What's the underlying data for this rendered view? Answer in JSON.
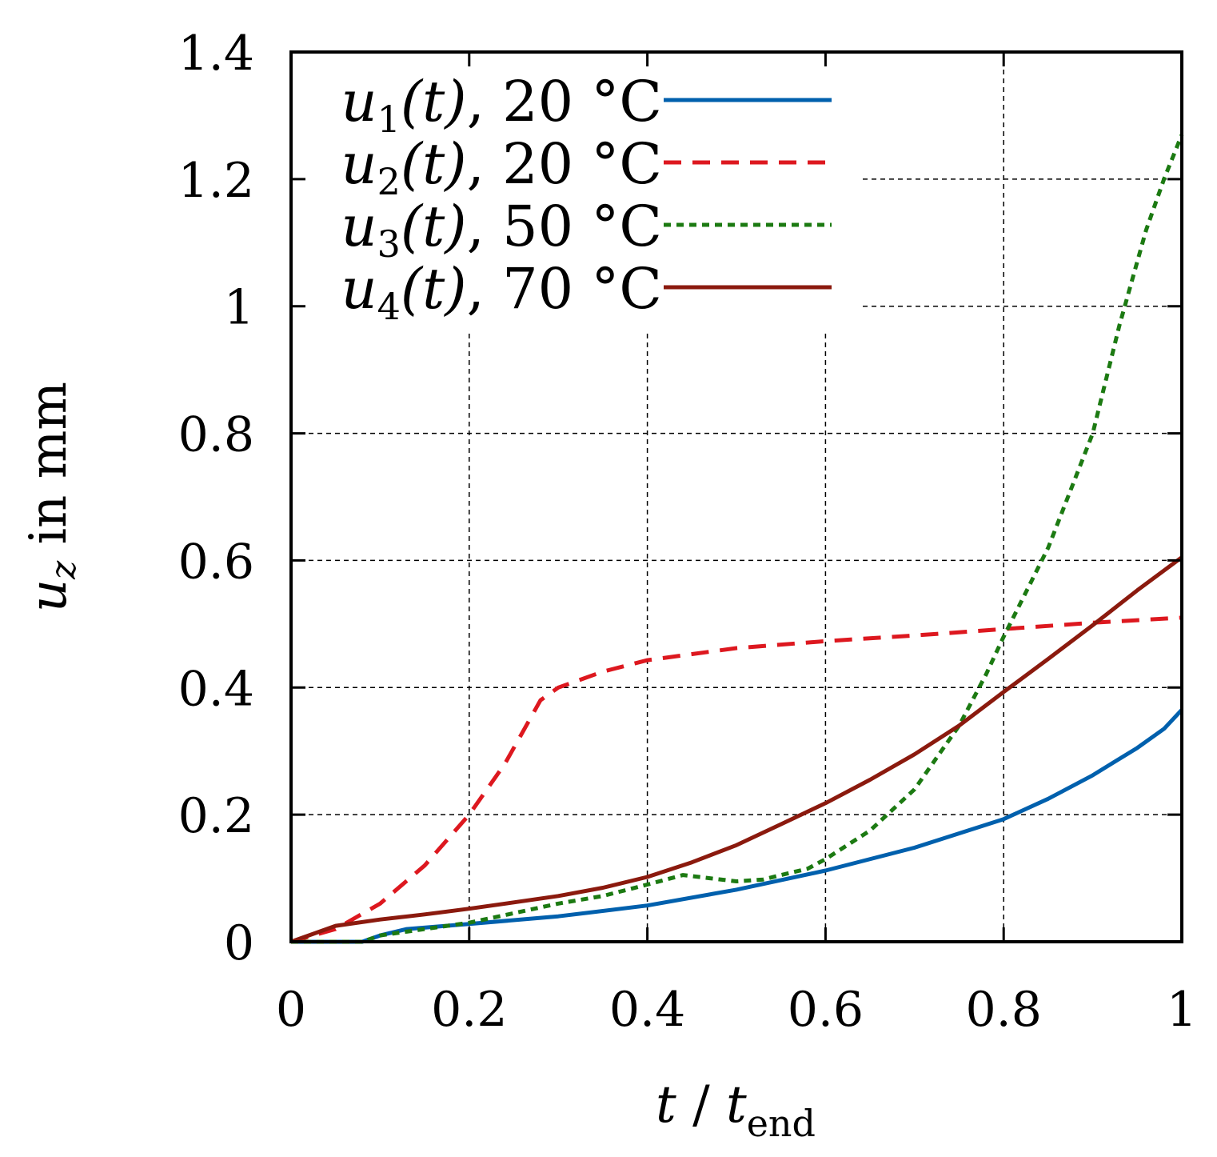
{
  "chart_data": {
    "type": "line",
    "title": "",
    "xlabel": {
      "var": "t",
      "sep": " / ",
      "sub_var": "t",
      "sub": "end"
    },
    "ylabel": {
      "var": "u",
      "sub": "z",
      "rest": " in mm"
    },
    "xlim": [
      0,
      1
    ],
    "ylim": [
      0,
      1.4
    ],
    "xticks": [
      0,
      0.2,
      0.4,
      0.6,
      0.8,
      1
    ],
    "xtick_labels": [
      "0",
      "0.2",
      "0.4",
      "0.6",
      "0.8",
      "1"
    ],
    "yticks": [
      0,
      0.2,
      0.4,
      0.6,
      0.8,
      1,
      1.2,
      1.4
    ],
    "ytick_labels": [
      "0",
      "0.2",
      "0.4",
      "0.6",
      "0.8",
      "1",
      "1.2",
      "1.4"
    ],
    "grid": true,
    "legend_position": "top-left",
    "series": [
      {
        "name": "u1(t), 20 °C",
        "label": {
          "var": "u",
          "sub": "1",
          "arg": "(t)",
          "temp": ", 20 °C"
        },
        "color": "#0060ad",
        "dash": "solid",
        "x": [
          0,
          0.05,
          0.08,
          0.1,
          0.13,
          0.2,
          0.3,
          0.4,
          0.5,
          0.6,
          0.7,
          0.8,
          0.85,
          0.9,
          0.95,
          0.98,
          1.0
        ],
        "y": [
          0,
          0,
          0,
          0.01,
          0.02,
          0.028,
          0.04,
          0.057,
          0.082,
          0.112,
          0.148,
          0.193,
          0.225,
          0.262,
          0.305,
          0.335,
          0.365
        ]
      },
      {
        "name": "u2(t), 20 °C",
        "label": {
          "var": "u",
          "sub": "2",
          "arg": "(t)",
          "temp": ", 20 °C"
        },
        "color": "#dd181f",
        "dash": "dashed",
        "x": [
          0,
          0.05,
          0.1,
          0.15,
          0.2,
          0.24,
          0.28,
          0.3,
          0.35,
          0.4,
          0.5,
          0.6,
          0.7,
          0.8,
          0.9,
          1.0
        ],
        "y": [
          0,
          0.02,
          0.06,
          0.12,
          0.2,
          0.28,
          0.38,
          0.4,
          0.425,
          0.443,
          0.462,
          0.473,
          0.482,
          0.492,
          0.502,
          0.51
        ]
      },
      {
        "name": "u3(t), 50 °C",
        "label": {
          "var": "u",
          "sub": "3",
          "arg": "(t)",
          "temp": ", 50 °C"
        },
        "color": "#1c7a12",
        "dash": "dotted",
        "x": [
          0,
          0.05,
          0.08,
          0.1,
          0.15,
          0.2,
          0.25,
          0.3,
          0.35,
          0.4,
          0.44,
          0.47,
          0.5,
          0.53,
          0.55,
          0.58,
          0.6,
          0.65,
          0.7,
          0.75,
          0.78,
          0.8,
          0.85,
          0.9,
          0.93,
          0.96,
          0.98,
          1.0
        ],
        "y": [
          0,
          0,
          0,
          0.01,
          0.02,
          0.03,
          0.045,
          0.06,
          0.072,
          0.09,
          0.105,
          0.1,
          0.095,
          0.098,
          0.105,
          0.115,
          0.13,
          0.175,
          0.24,
          0.34,
          0.42,
          0.48,
          0.62,
          0.8,
          0.97,
          1.12,
          1.2,
          1.27
        ]
      },
      {
        "name": "u4(t), 70 °C",
        "label": {
          "var": "u",
          "sub": "4",
          "arg": "(t)",
          "temp": ", 70 °C"
        },
        "color": "#8b1a0e",
        "dash": "solid",
        "x": [
          0,
          0.05,
          0.1,
          0.15,
          0.2,
          0.25,
          0.3,
          0.35,
          0.4,
          0.45,
          0.5,
          0.55,
          0.6,
          0.65,
          0.7,
          0.75,
          0.8,
          0.85,
          0.9,
          0.95,
          1.0
        ],
        "y": [
          0,
          0.025,
          0.035,
          0.043,
          0.052,
          0.062,
          0.072,
          0.085,
          0.102,
          0.125,
          0.152,
          0.185,
          0.218,
          0.255,
          0.295,
          0.34,
          0.393,
          0.445,
          0.498,
          0.553,
          0.605
        ]
      }
    ]
  }
}
